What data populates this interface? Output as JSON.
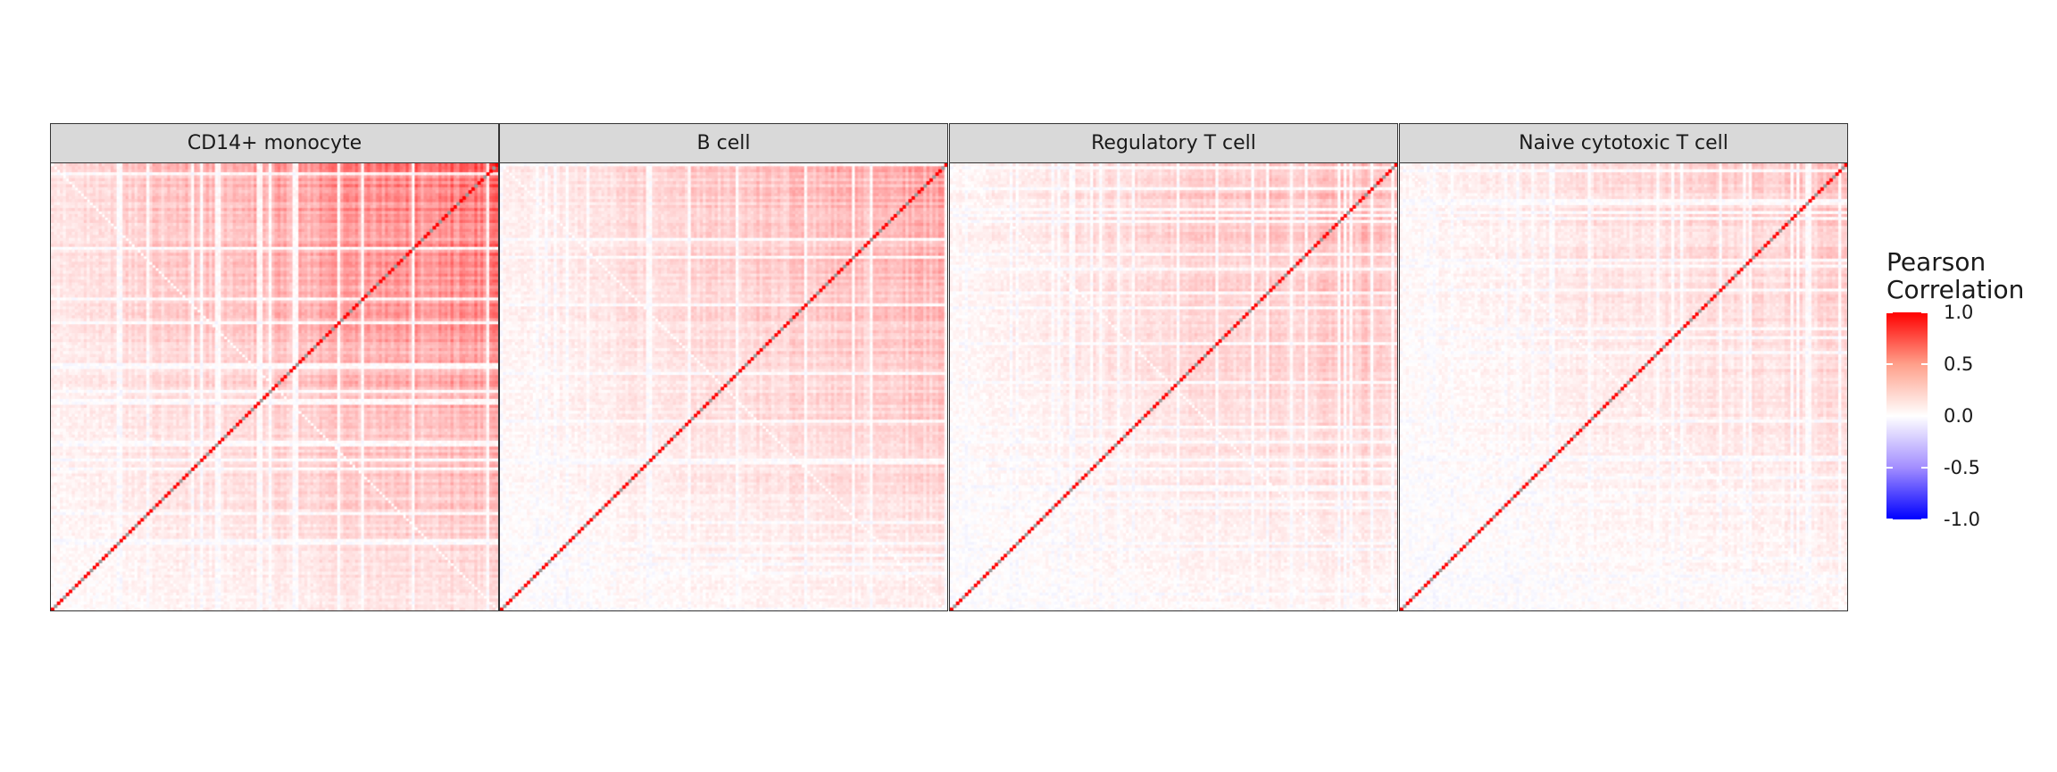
{
  "chart_data": {
    "type": "heatmap",
    "facets": [
      {
        "title": "CD14+ monocyte",
        "n_genes": 150,
        "base_correlation": 0.28,
        "diagonal_value": 1.0
      },
      {
        "title": "B cell",
        "n_genes": 150,
        "base_correlation": 0.18,
        "diagonal_value": 1.0
      },
      {
        "title": "Regulatory T cell",
        "n_genes": 150,
        "base_correlation": 0.16,
        "diagonal_value": 1.0
      },
      {
        "title": "Naive cytotoxic T cell",
        "n_genes": 150,
        "base_correlation": 0.12,
        "diagonal_value": 1.0
      }
    ],
    "legend": {
      "title_line1": "Pearson",
      "title_line2": "Correlation",
      "ticks": [
        "1.0",
        "0.5",
        "0.0",
        "-0.5",
        "-1.0"
      ],
      "tick_values": [
        1.0,
        0.5,
        0.0,
        -0.5,
        -1.0
      ],
      "range": [
        -1.0,
        1.0
      ]
    },
    "colors": {
      "high": "#ff0000",
      "mid": "#ffffff",
      "low": "#0000ff",
      "na_diagonal": "#999999"
    }
  }
}
